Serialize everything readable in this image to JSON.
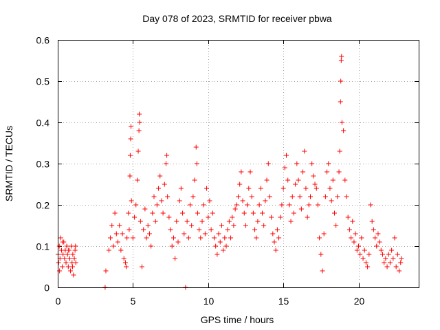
{
  "chart_data": {
    "type": "scatter",
    "title": "Day 078 of 2023, SRMTID for receiver pbwa",
    "xlabel": "GPS time / hours",
    "ylabel": "SRMTID / TECUs",
    "xlim": [
      0,
      24
    ],
    "ylim": [
      0,
      0.6
    ],
    "x_ticks": [
      "0",
      "5",
      "10",
      "15",
      "20"
    ],
    "x_tick_values": [
      0,
      5,
      10,
      15,
      20
    ],
    "y_ticks": [
      "0",
      "0.1",
      "0.2",
      "0.3",
      "0.4",
      "0.5",
      "0.6"
    ],
    "y_tick_values": [
      0,
      0.1,
      0.2,
      0.3,
      0.4,
      0.5,
      0.6
    ],
    "grid": true,
    "marker": "+",
    "series": [
      {
        "name": "SRMTID",
        "color": "#ff0000",
        "points": [
          [
            0.02,
            0.08
          ],
          [
            0.05,
            0.06
          ],
          [
            0.1,
            0.1
          ],
          [
            0.15,
            0.07
          ],
          [
            0.2,
            0.12
          ],
          [
            0.25,
            0.09
          ],
          [
            0.3,
            0.05
          ],
          [
            0.35,
            0.08
          ],
          [
            0.4,
            0.11
          ],
          [
            0.45,
            0.07
          ],
          [
            0.5,
            0.09
          ],
          [
            0.55,
            0.06
          ],
          [
            0.6,
            0.1
          ],
          [
            0.65,
            0.08
          ],
          [
            0.7,
            0.05
          ],
          [
            0.75,
            0.09
          ],
          [
            0.8,
            0.07
          ],
          [
            0.85,
            0.04
          ],
          [
            0.9,
            0.1
          ],
          [
            0.95,
            0.06
          ],
          [
            1.0,
            0.08
          ],
          [
            1.05,
            0.03
          ],
          [
            1.1,
            0.07
          ],
          [
            1.15,
            0.09
          ],
          [
            1.2,
            0.06
          ],
          [
            0.12,
            0.04
          ],
          [
            0.33,
            0.11
          ],
          [
            0.72,
            0.09
          ],
          [
            0.98,
            0.05
          ],
          [
            1.18,
            0.1
          ],
          [
            3.15,
            0.0
          ],
          [
            3.2,
            0.04
          ],
          [
            3.4,
            0.09
          ],
          [
            3.5,
            0.12
          ],
          [
            3.6,
            0.15
          ],
          [
            3.7,
            0.1
          ],
          [
            3.8,
            0.18
          ],
          [
            3.9,
            0.13
          ],
          [
            4.0,
            0.11
          ],
          [
            4.1,
            0.15
          ],
          [
            4.2,
            0.09
          ],
          [
            4.3,
            0.13
          ],
          [
            4.4,
            0.07
          ],
          [
            4.5,
            0.06
          ],
          [
            4.55,
            0.05
          ],
          [
            4.6,
            0.12
          ],
          [
            4.7,
            0.18
          ],
          [
            4.75,
            0.14
          ],
          [
            4.8,
            0.27
          ],
          [
            4.82,
            0.32
          ],
          [
            4.85,
            0.36
          ],
          [
            4.87,
            0.39
          ],
          [
            4.9,
            0.21
          ],
          [
            5.0,
            0.12
          ],
          [
            5.1,
            0.17
          ],
          [
            5.2,
            0.2
          ],
          [
            5.3,
            0.26
          ],
          [
            5.35,
            0.33
          ],
          [
            5.4,
            0.38
          ],
          [
            5.42,
            0.42
          ],
          [
            5.45,
            0.4
          ],
          [
            5.5,
            0.16
          ],
          [
            5.6,
            0.05
          ],
          [
            5.7,
            0.14
          ],
          [
            5.8,
            0.19
          ],
          [
            5.9,
            0.12
          ],
          [
            6.0,
            0.15
          ],
          [
            6.1,
            0.13
          ],
          [
            6.2,
            0.1
          ],
          [
            6.3,
            0.18
          ],
          [
            6.4,
            0.22
          ],
          [
            6.5,
            0.16
          ],
          [
            6.6,
            0.2
          ],
          [
            6.7,
            0.24
          ],
          [
            6.8,
            0.27
          ],
          [
            6.9,
            0.21
          ],
          [
            7.0,
            0.18
          ],
          [
            7.1,
            0.25
          ],
          [
            7.2,
            0.3
          ],
          [
            7.25,
            0.32
          ],
          [
            7.3,
            0.22
          ],
          [
            7.4,
            0.17
          ],
          [
            7.5,
            0.14
          ],
          [
            7.6,
            0.1
          ],
          [
            7.7,
            0.12
          ],
          [
            7.8,
            0.07
          ],
          [
            7.9,
            0.16
          ],
          [
            8.0,
            0.11
          ],
          [
            8.1,
            0.21
          ],
          [
            8.2,
            0.24
          ],
          [
            8.3,
            0.18
          ],
          [
            8.4,
            0.13
          ],
          [
            8.5,
            0.0
          ],
          [
            8.6,
            0.16
          ],
          [
            8.7,
            0.12
          ],
          [
            8.8,
            0.2
          ],
          [
            8.9,
            0.15
          ],
          [
            9.0,
            0.22
          ],
          [
            9.1,
            0.26
          ],
          [
            9.2,
            0.34
          ],
          [
            9.25,
            0.3
          ],
          [
            9.3,
            0.18
          ],
          [
            9.4,
            0.14
          ],
          [
            9.5,
            0.12
          ],
          [
            9.6,
            0.16
          ],
          [
            9.7,
            0.2
          ],
          [
            9.8,
            0.13
          ],
          [
            9.9,
            0.24
          ],
          [
            10.0,
            0.17
          ],
          [
            10.1,
            0.21
          ],
          [
            10.2,
            0.14
          ],
          [
            10.3,
            0.18
          ],
          [
            10.4,
            0.12
          ],
          [
            10.5,
            0.1
          ],
          [
            10.6,
            0.08
          ],
          [
            10.7,
            0.13
          ],
          [
            10.8,
            0.11
          ],
          [
            10.9,
            0.15
          ],
          [
            11.0,
            0.09
          ],
          [
            11.1,
            0.12
          ],
          [
            11.2,
            0.1
          ],
          [
            11.3,
            0.14
          ],
          [
            11.4,
            0.16
          ],
          [
            11.5,
            0.12
          ],
          [
            11.6,
            0.17
          ],
          [
            11.7,
            0.15
          ],
          [
            11.8,
            0.19
          ],
          [
            11.9,
            0.2
          ],
          [
            12.0,
            0.22
          ],
          [
            12.1,
            0.25
          ],
          [
            12.2,
            0.28
          ],
          [
            12.3,
            0.21
          ],
          [
            12.4,
            0.18
          ],
          [
            12.5,
            0.15
          ],
          [
            12.6,
            0.2
          ],
          [
            12.7,
            0.24
          ],
          [
            12.8,
            0.28
          ],
          [
            12.9,
            0.22
          ],
          [
            13.0,
            0.18
          ],
          [
            13.1,
            0.14
          ],
          [
            13.2,
            0.12
          ],
          [
            13.3,
            0.16
          ],
          [
            13.4,
            0.2
          ],
          [
            13.5,
            0.24
          ],
          [
            13.6,
            0.18
          ],
          [
            13.7,
            0.15
          ],
          [
            13.8,
            0.21
          ],
          [
            13.9,
            0.26
          ],
          [
            14.0,
            0.3
          ],
          [
            14.1,
            0.22
          ],
          [
            14.2,
            0.17
          ],
          [
            14.3,
            0.13
          ],
          [
            14.4,
            0.11
          ],
          [
            14.5,
            0.09
          ],
          [
            14.6,
            0.14
          ],
          [
            14.7,
            0.12
          ],
          [
            14.8,
            0.17
          ],
          [
            14.9,
            0.2
          ],
          [
            15.0,
            0.24
          ],
          [
            15.1,
            0.29
          ],
          [
            15.2,
            0.32
          ],
          [
            15.3,
            0.26
          ],
          [
            15.4,
            0.2
          ],
          [
            15.5,
            0.16
          ],
          [
            15.6,
            0.22
          ],
          [
            15.7,
            0.18
          ],
          [
            15.8,
            0.25
          ],
          [
            15.9,
            0.3
          ],
          [
            16.0,
            0.26
          ],
          [
            16.1,
            0.22
          ],
          [
            16.2,
            0.19
          ],
          [
            16.3,
            0.28
          ],
          [
            16.4,
            0.33
          ],
          [
            16.5,
            0.24
          ],
          [
            16.6,
            0.17
          ],
          [
            16.7,
            0.2
          ],
          [
            16.8,
            0.22
          ],
          [
            16.9,
            0.3
          ],
          [
            17.0,
            0.27
          ],
          [
            17.1,
            0.25
          ],
          [
            17.2,
            0.24
          ],
          [
            17.3,
            0.2
          ],
          [
            17.4,
            0.12
          ],
          [
            17.5,
            0.08
          ],
          [
            17.6,
            0.04
          ],
          [
            17.7,
            0.13
          ],
          [
            17.8,
            0.22
          ],
          [
            17.9,
            0.28
          ],
          [
            18.0,
            0.3
          ],
          [
            18.1,
            0.24
          ],
          [
            18.2,
            0.21
          ],
          [
            18.3,
            0.26
          ],
          [
            18.4,
            0.18
          ],
          [
            18.5,
            0.15
          ],
          [
            18.6,
            0.22
          ],
          [
            18.7,
            0.28
          ],
          [
            18.75,
            0.33
          ],
          [
            18.8,
            0.45
          ],
          [
            18.82,
            0.5
          ],
          [
            18.85,
            0.55
          ],
          [
            18.87,
            0.56
          ],
          [
            18.9,
            0.4
          ],
          [
            19.0,
            0.38
          ],
          [
            19.1,
            0.26
          ],
          [
            19.2,
            0.22
          ],
          [
            19.3,
            0.17
          ],
          [
            19.4,
            0.14
          ],
          [
            19.5,
            0.12
          ],
          [
            19.6,
            0.16
          ],
          [
            19.7,
            0.11
          ],
          [
            19.8,
            0.13
          ],
          [
            19.9,
            0.09
          ],
          [
            20.0,
            0.1
          ],
          [
            20.1,
            0.08
          ],
          [
            20.2,
            0.12
          ],
          [
            20.3,
            0.07
          ],
          [
            20.4,
            0.09
          ],
          [
            20.5,
            0.06
          ],
          [
            20.6,
            0.05
          ],
          [
            20.7,
            0.08
          ],
          [
            20.8,
            0.2
          ],
          [
            20.9,
            0.16
          ],
          [
            21.0,
            0.14
          ],
          [
            21.1,
            0.12
          ],
          [
            21.2,
            0.1
          ],
          [
            21.3,
            0.13
          ],
          [
            21.4,
            0.11
          ],
          [
            21.5,
            0.09
          ],
          [
            21.6,
            0.08
          ],
          [
            21.7,
            0.06
          ],
          [
            21.8,
            0.07
          ],
          [
            21.9,
            0.05
          ],
          [
            22.0,
            0.08
          ],
          [
            22.1,
            0.06
          ],
          [
            22.2,
            0.09
          ],
          [
            22.3,
            0.07
          ],
          [
            22.4,
            0.12
          ],
          [
            22.5,
            0.05
          ],
          [
            22.6,
            0.08
          ],
          [
            22.7,
            0.04
          ],
          [
            22.8,
            0.06
          ],
          [
            22.85,
            0.07
          ]
        ]
      }
    ]
  }
}
